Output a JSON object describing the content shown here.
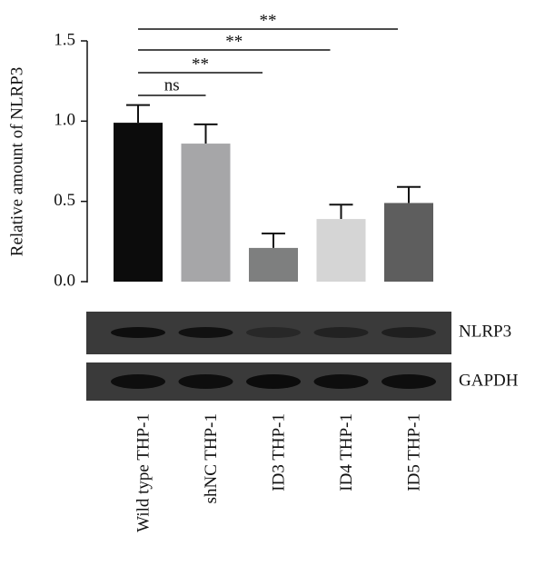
{
  "chart_data": {
    "type": "bar",
    "y_label": "Relative amount of NLRP3",
    "categories": [
      "Wild type THP-1",
      "shNC THP-1",
      "ID3 THP-1",
      "ID4 THP-1",
      "ID5 THP-1"
    ],
    "values": [
      0.99,
      0.86,
      0.21,
      0.39,
      0.49
    ],
    "errors": [
      0.11,
      0.12,
      0.09,
      0.09,
      0.1
    ],
    "colors": [
      "#0c0c0c",
      "#a6a6a8",
      "#7e7f7f",
      "#d5d5d5",
      "#5e5e5e"
    ],
    "ylim": [
      0,
      1.5
    ],
    "yticks": [
      {
        "value": 0,
        "label": "0.0"
      },
      0.5,
      {
        "value": 1,
        "label": "1.0"
      },
      1.5
    ],
    "significance": [
      {
        "label": "ns",
        "categories": [
          0,
          1
        ]
      },
      {
        "label": "**",
        "categories": [
          0,
          2
        ]
      },
      {
        "label": "**",
        "categories": [
          0,
          3
        ]
      },
      {
        "label": "**",
        "categories": [
          0,
          4
        ]
      }
    ],
    "blot_rows": [
      "NLRP3",
      "GAPDH"
    ]
  }
}
